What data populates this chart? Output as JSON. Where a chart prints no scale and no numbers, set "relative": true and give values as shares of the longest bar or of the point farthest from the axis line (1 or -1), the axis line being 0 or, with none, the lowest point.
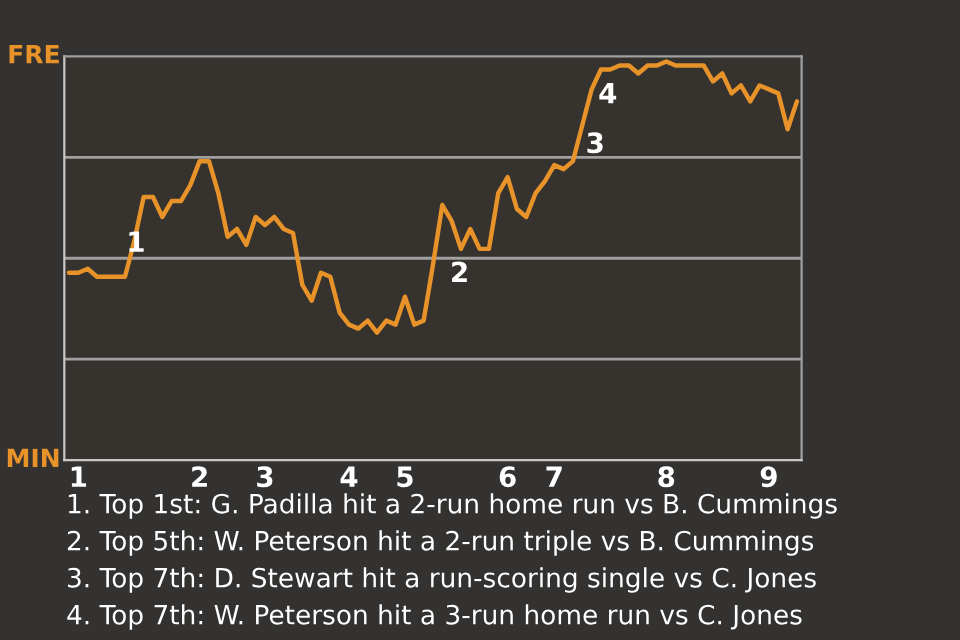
{
  "chart_data": {
    "type": "line",
    "relative": true,
    "categories": [
      null,
      "1",
      null,
      null,
      null,
      null,
      null,
      null,
      null,
      null,
      null,
      null,
      null,
      null,
      "2",
      null,
      null,
      null,
      null,
      null,
      null,
      "3",
      null,
      null,
      null,
      null,
      null,
      null,
      null,
      null,
      "4",
      null,
      null,
      null,
      null,
      null,
      "5",
      null,
      null,
      null,
      null,
      null,
      null,
      null,
      null,
      null,
      null,
      "6",
      null,
      null,
      null,
      null,
      "7",
      null,
      null,
      null,
      null,
      null,
      null,
      null,
      null,
      null,
      null,
      null,
      "8",
      null,
      null,
      null,
      null,
      null,
      null,
      null,
      null,
      null,
      null,
      "9",
      null,
      null,
      null
    ],
    "grid": "y",
    "series": [
      {
        "color": "#e8922a",
        "values": [
          0.47,
          0.47,
          0.48,
          0.46,
          0.46,
          0.46,
          0.46,
          0.55,
          0.66,
          0.66,
          0.61,
          0.65,
          0.65,
          0.69,
          0.75,
          0.75,
          0.67,
          0.56,
          0.58,
          0.54,
          0.61,
          0.59,
          0.61,
          0.58,
          0.57,
          0.44,
          0.4,
          0.47,
          0.46,
          0.37,
          0.34,
          0.33,
          0.35,
          0.32,
          0.35,
          0.34,
          0.41,
          0.34,
          0.35,
          0.49,
          0.64,
          0.6,
          0.53,
          0.58,
          0.53,
          0.53,
          0.67,
          0.71,
          0.63,
          0.61,
          0.67,
          0.7,
          0.74,
          0.73,
          0.75,
          0.84,
          0.93,
          0.98,
          0.98,
          0.99,
          0.99,
          0.97,
          0.99,
          0.99,
          1.0,
          0.99,
          0.99,
          0.99,
          0.99,
          0.95,
          0.97,
          0.92,
          0.94,
          0.9,
          0.94,
          0.93,
          0.92,
          0.83,
          0.9
        ]
      }
    ],
    "annotations": [
      "FRE",
      "MIN",
      "1",
      "2",
      "3",
      "4",
      "1. Top 1st: G. Padilla hit a 2-run home run vs B. Cummings",
      "2. Top 5th: W. Peterson hit a 2-run triple vs B. Cummings",
      "3. Top 7th: D. Stewart hit a run-scoring single vs C. Jones",
      "4. Top 7th: W. Peterson hit a 3-run home run vs C. Jones"
    ]
  }
}
